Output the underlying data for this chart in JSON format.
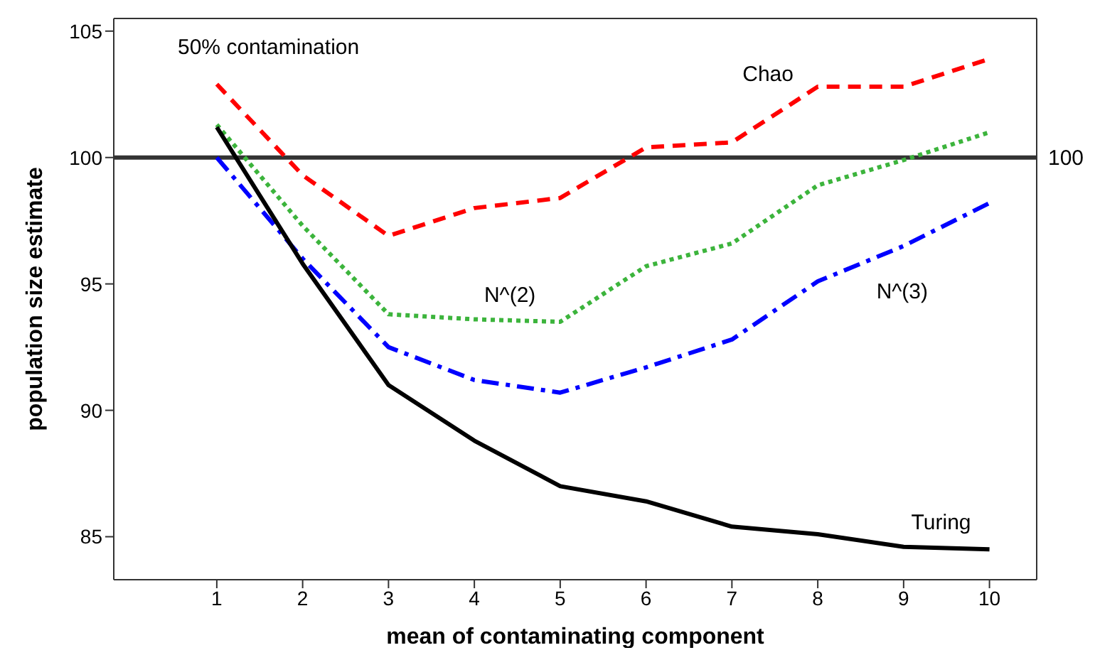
{
  "chart_data": {
    "type": "line",
    "xlabel": "mean of contaminating component",
    "ylabel": "population size estimate",
    "annotations": [
      "50% contamination"
    ],
    "x": [
      1,
      2,
      3,
      4,
      5,
      6,
      7,
      8,
      9,
      10
    ],
    "series": [
      {
        "name": "Chao",
        "color": "#ff0000",
        "line_style": "dashed",
        "values": [
          102.9,
          99.3,
          96.9,
          98.0,
          98.4,
          100.4,
          100.6,
          102.8,
          102.8,
          103.9
        ]
      },
      {
        "name": "N^(2)",
        "color": "#3cb43c",
        "line_style": "dotted",
        "values": [
          101.3,
          97.3,
          93.8,
          93.6,
          93.5,
          95.7,
          96.6,
          98.9,
          99.9,
          101.0
        ]
      },
      {
        "name": "N^(3)",
        "color": "#0000ff",
        "line_style": "dashdot",
        "values": [
          100.0,
          96.0,
          92.5,
          91.2,
          90.7,
          91.7,
          92.8,
          95.1,
          96.5,
          98.2
        ]
      },
      {
        "name": "Turing",
        "color": "#000000",
        "line_style": "solid",
        "values": [
          101.2,
          95.8,
          91.0,
          88.8,
          87.0,
          86.4,
          85.4,
          85.1,
          84.6,
          84.5
        ]
      }
    ],
    "xlim": [
      -0.2,
      10.55
    ],
    "ylim": [
      83.3,
      105.5
    ],
    "xticks": [
      1,
      2,
      3,
      4,
      5,
      6,
      7,
      8,
      9,
      10
    ],
    "yticks": [
      85,
      90,
      95,
      100,
      105
    ],
    "ref_lines": [
      {
        "axis": "y",
        "value": 100,
        "label": "100",
        "color": "#333333"
      }
    ],
    "grid": false,
    "legend": false,
    "marker": "none"
  }
}
